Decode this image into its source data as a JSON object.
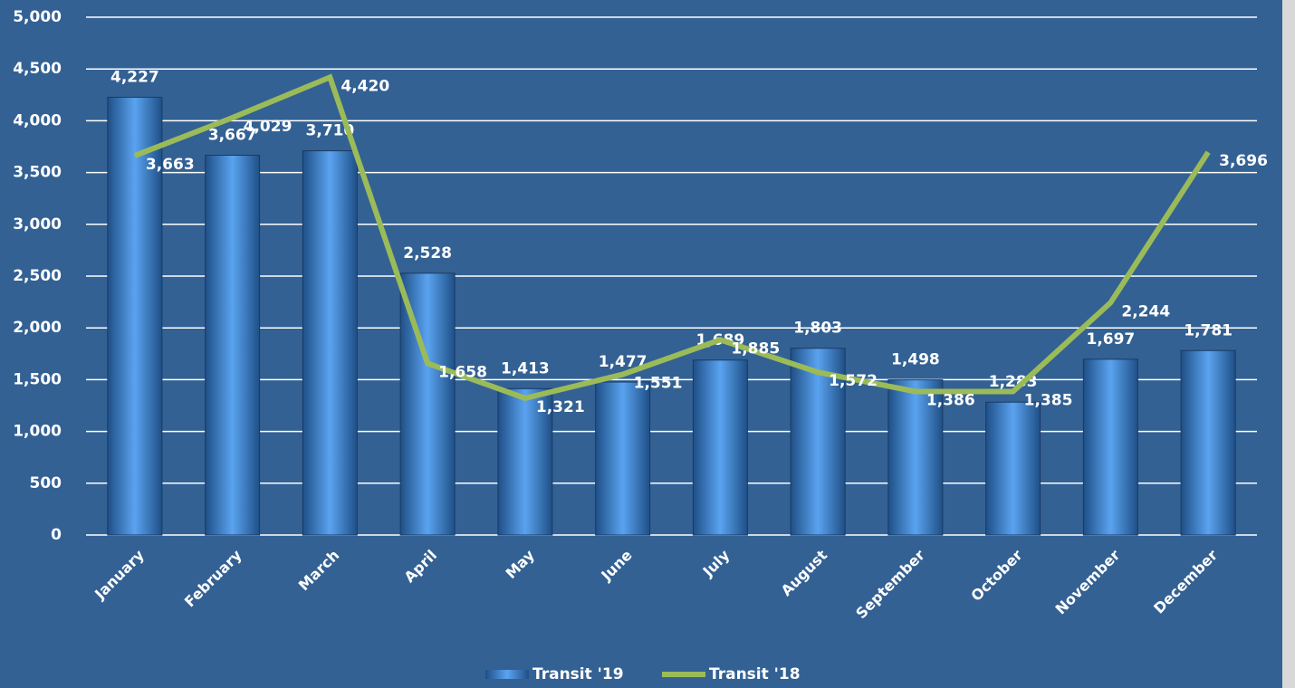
{
  "chart_data": {
    "type": "bar_line",
    "categories": [
      "January",
      "February",
      "March",
      "April",
      "May",
      "June",
      "July",
      "August",
      "September",
      "October",
      "November",
      "December"
    ],
    "series": [
      {
        "name": "Transit '19",
        "type": "bar",
        "color": "#4a90e0",
        "values": [
          4227,
          3667,
          3710,
          2528,
          1413,
          1477,
          1689,
          1803,
          1498,
          1283,
          1697,
          1781
        ],
        "value_labels": [
          "4,227",
          "3,667",
          "3,710",
          "2,528",
          "1,413",
          "1,477",
          "1,689",
          "1,803",
          "1,498",
          "1,283",
          "1,697",
          "1,781"
        ]
      },
      {
        "name": "Transit '18",
        "type": "line",
        "color": "#9bbb59",
        "values": [
          3663,
          4029,
          4420,
          1658,
          1321,
          1551,
          1885,
          1572,
          1386,
          1385,
          2244,
          3696
        ],
        "value_labels": [
          "3,663",
          "4,029",
          "4,420",
          "1,658",
          "1,321",
          "1,551",
          "1,885",
          "1,572",
          "1,386",
          "1,385",
          "2,244",
          "3,696"
        ]
      }
    ],
    "ylim": [
      0,
      5000
    ],
    "yticks": [
      0,
      500,
      {
        "value": 1000,
        "label": "1,000"
      },
      {
        "value": 1500,
        "label": "1,500"
      },
      {
        "value": 2000,
        "label": "2,000"
      },
      {
        "value": 2500,
        "label": "2,500"
      },
      {
        "value": 3000,
        "label": "3,000"
      },
      {
        "value": 3500,
        "label": "3,500"
      },
      {
        "value": 4000,
        "label": "4,000"
      },
      {
        "value": 4500,
        "label": "4,500"
      },
      {
        "value": 5000,
        "label": "5,000"
      }
    ],
    "grid": true,
    "legend": "bottom"
  }
}
